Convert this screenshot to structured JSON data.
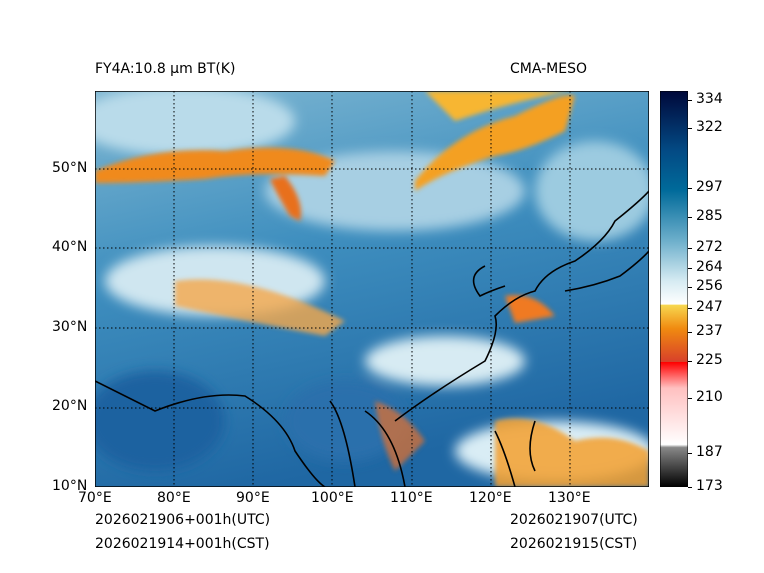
{
  "title_left": "FY4A:10.8 µm BT(K)",
  "title_right": "CMA-MESO",
  "footer": {
    "init_utc": "2026021906+001h(UTC)",
    "init_cst": "2026021914+001h(CST)",
    "valid_utc": "2026021907(UTC)",
    "valid_cst": "2026021915(CST)"
  },
  "map": {
    "lon_range": [
      70,
      140
    ],
    "lat_range": [
      10,
      60
    ],
    "lon_ticks": [
      {
        "value": 70,
        "label": "70°E"
      },
      {
        "value": 80,
        "label": "80°E"
      },
      {
        "value": 90,
        "label": "90°E"
      },
      {
        "value": 100,
        "label": "100°E"
      },
      {
        "value": 110,
        "label": "110°E"
      },
      {
        "value": 120,
        "label": "120°E"
      },
      {
        "value": 130,
        "label": "130°E"
      }
    ],
    "lat_ticks": [
      {
        "value": 10,
        "label": "10°N"
      },
      {
        "value": 20,
        "label": "20°N"
      },
      {
        "value": 30,
        "label": "30°N"
      },
      {
        "value": 40,
        "label": "40°N"
      },
      {
        "value": 50,
        "label": "50°N"
      }
    ]
  },
  "colorbar": {
    "range": [
      173,
      338
    ],
    "ticks": [
      {
        "value": 334,
        "label": "334"
      },
      {
        "value": 322,
        "label": "322"
      },
      {
        "value": 297,
        "label": "297"
      },
      {
        "value": 285,
        "label": "285"
      },
      {
        "value": 272,
        "label": "272"
      },
      {
        "value": 264,
        "label": "264"
      },
      {
        "value": 256,
        "label": "256"
      },
      {
        "value": 247,
        "label": "247"
      },
      {
        "value": 237,
        "label": "237"
      },
      {
        "value": 225,
        "label": "225"
      },
      {
        "value": 210,
        "label": "210"
      },
      {
        "value": 187,
        "label": "187"
      },
      {
        "value": 173,
        "label": "173"
      }
    ]
  }
}
